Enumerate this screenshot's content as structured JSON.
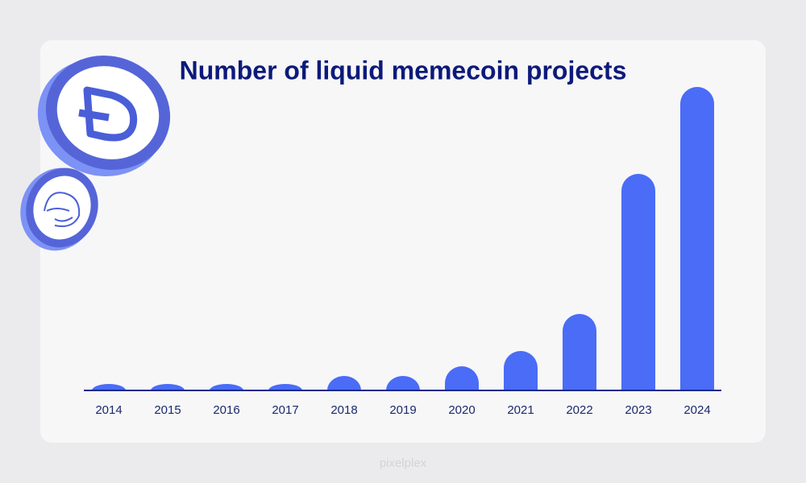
{
  "chart_data": {
    "type": "bar",
    "title": "Number of liquid memecoin projects",
    "categories": [
      "2014",
      "2015",
      "2016",
      "2017",
      "2018",
      "2019",
      "2020",
      "2021",
      "2022",
      "2023",
      "2024"
    ],
    "values": [
      8,
      8,
      8,
      8,
      18,
      18,
      30,
      49,
      95,
      269,
      377
    ],
    "color": "#4a6cf7",
    "ylim": [
      0,
      400
    ]
  },
  "watermark": "pixelplex"
}
